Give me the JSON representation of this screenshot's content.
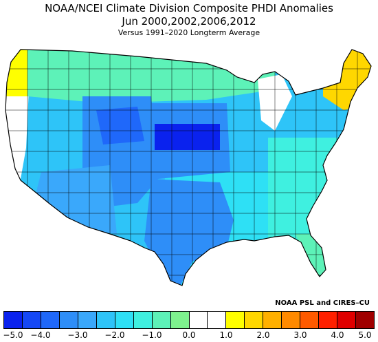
{
  "title": {
    "line1": "NOAA/NCEI Climate Division Composite PHDI Anomalies",
    "line2": "Jun  2000,2002,2006,2012",
    "line3": "Versus 1991–2020 Longterm Average"
  },
  "credit": "NOAA PSL and CIRES–CU",
  "legend": {
    "colors": [
      "#0a22ee",
      "#1548f5",
      "#1f68fa",
      "#2e8ef8",
      "#3aa8fb",
      "#2ec4f8",
      "#2ee0f5",
      "#3ff0e0",
      "#5df2b8",
      "#7ef28e",
      "#ffffff",
      "#ffffff",
      "#ffff00",
      "#ffd700",
      "#ffb000",
      "#ff8a00",
      "#ff5a00",
      "#ff2000",
      "#e00000",
      "#a00000"
    ],
    "ticks": [
      "−5.0",
      "−4.0",
      "−3.0",
      "−2.0",
      "−1.0",
      "0.0",
      "1.0",
      "2.0",
      "3.0",
      "4.0",
      "5.0"
    ]
  },
  "map": {
    "region_colors": {
      "northwest_ocean": "#ffff00",
      "west_coast": "#ffffff",
      "great_basin": "#2ec4f8",
      "rockies": "#1f68fa",
      "plains_core": "#0a22ee",
      "plains": "#2e8ef8",
      "southwest": "#3aa8fb",
      "texas": "#2e8ef8",
      "midwest": "#2ec4f8",
      "south": "#2ee0f5",
      "southeast": "#3ff0e0",
      "northern_tier": "#5df2b8",
      "northeast": "#ffd700",
      "great_lakes_gap": "#ffffff",
      "florida": "#5df2b8"
    }
  }
}
